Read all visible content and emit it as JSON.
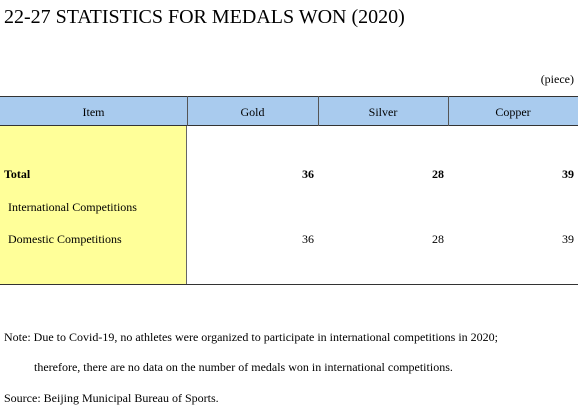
{
  "header": {
    "title": "22-27  STATISTICS FOR MEDALS WON (2020)"
  },
  "table": {
    "unit": "(piece)",
    "columns": [
      "Item",
      "Gold",
      "Silver",
      "Copper"
    ],
    "rows": [
      {
        "item": "Total",
        "values": [
          36,
          28,
          39
        ]
      },
      {
        "item": "International Competitions"
      },
      {
        "item": "Domestic Competitions",
        "values": [
          36,
          28,
          39
        ]
      }
    ]
  },
  "notes": [
    "Note: Due to Covid-19, no athletes were organized to participate in international competitions in 2020;",
    "therefore, there are no data on the number of medals won in international competitions.",
    "Source: Beijing Municipal Bureau of Sports."
  ]
}
